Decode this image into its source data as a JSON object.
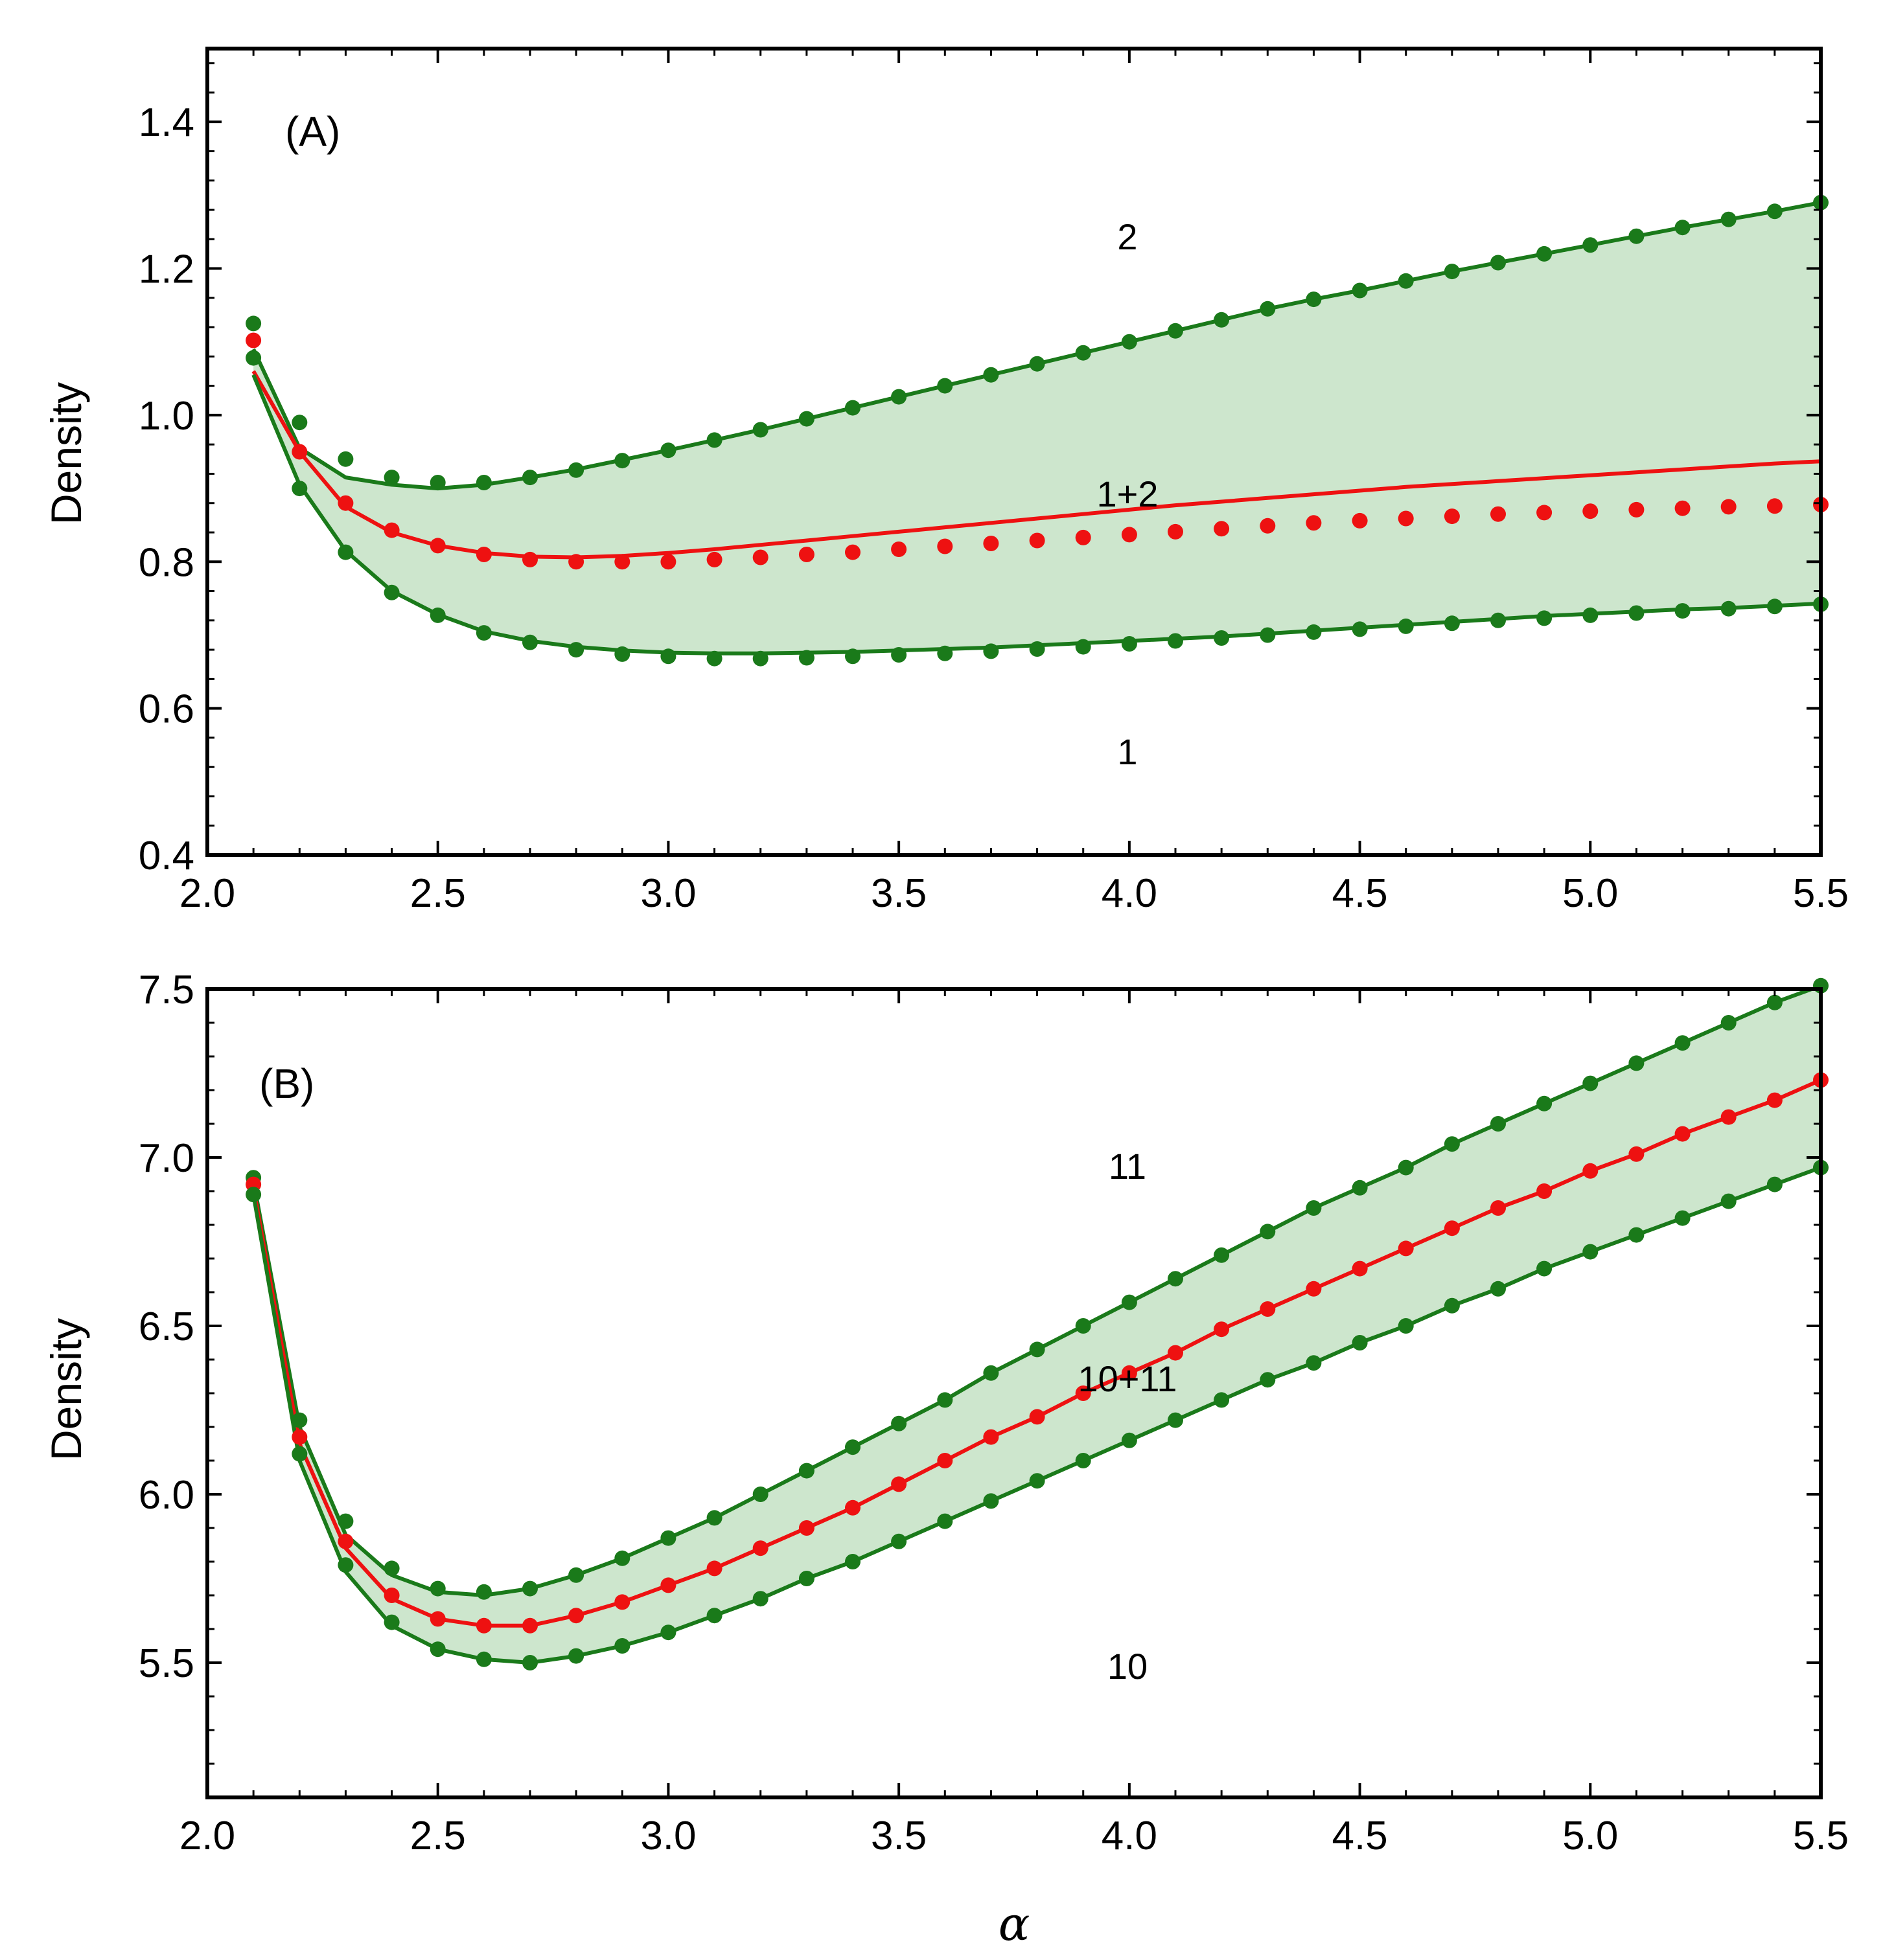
{
  "colors": {
    "green": "#1a7a1a",
    "red": "#ee1111",
    "fill": "#cde6cd",
    "frame": "#000000"
  },
  "xlabel": "α",
  "chart_data": [
    {
      "type": "line",
      "panel": "(A)",
      "ylabel": "Density",
      "xlim": [
        2.0,
        5.5
      ],
      "ylim": [
        0.4,
        1.5
      ],
      "xticks": [
        "2.0",
        "2.5",
        "3.0",
        "3.5",
        "4.0",
        "4.5",
        "5.0",
        "5.5"
      ],
      "yticks": [
        "0.4",
        "0.6",
        "0.8",
        "1.0",
        "1.2",
        "1.4"
      ],
      "region_labels": {
        "upper": "2",
        "middle": "1+2",
        "lower": "1"
      },
      "x": [
        2.1,
        2.2,
        2.3,
        2.4,
        2.5,
        2.6,
        2.7,
        2.8,
        2.9,
        3.0,
        3.1,
        3.2,
        3.3,
        3.4,
        3.5,
        3.6,
        3.7,
        3.8,
        3.9,
        4.0,
        4.1,
        4.2,
        4.3,
        4.4,
        4.5,
        4.6,
        4.7,
        4.8,
        4.9,
        5.0,
        5.1,
        5.2,
        5.3,
        5.4,
        5.5
      ],
      "series": [
        {
          "name": "upper",
          "color": "green",
          "line": [
            1.09,
            0.955,
            0.915,
            0.905,
            0.9,
            0.905,
            0.915,
            0.926,
            0.939,
            0.952,
            0.966,
            0.98,
            0.995,
            1.01,
            1.025,
            1.04,
            1.055,
            1.07,
            1.085,
            1.1,
            1.115,
            1.13,
            1.145,
            1.158,
            1.17,
            1.183,
            1.196,
            1.208,
            1.22,
            1.232,
            1.244,
            1.256,
            1.267,
            1.278,
            1.29
          ],
          "points": [
            1.125,
            0.99,
            0.94,
            0.915,
            0.908,
            0.908,
            0.915,
            0.925,
            0.938,
            0.952,
            0.966,
            0.98,
            0.995,
            1.01,
            1.025,
            1.04,
            1.055,
            1.07,
            1.085,
            1.1,
            1.115,
            1.13,
            1.145,
            1.158,
            1.17,
            1.183,
            1.196,
            1.208,
            1.22,
            1.232,
            1.244,
            1.256,
            1.267,
            1.278,
            1.29
          ]
        },
        {
          "name": "mixture",
          "color": "red",
          "line": [
            1.06,
            0.95,
            0.875,
            0.84,
            0.822,
            0.812,
            0.807,
            0.806,
            0.808,
            0.812,
            0.817,
            0.823,
            0.829,
            0.835,
            0.841,
            0.847,
            0.853,
            0.859,
            0.865,
            0.871,
            0.877,
            0.882,
            0.887,
            0.892,
            0.897,
            0.902,
            0.906,
            0.91,
            0.914,
            0.918,
            0.922,
            0.926,
            0.93,
            0.934,
            0.937
          ],
          "points": [
            1.102,
            0.95,
            0.88,
            0.843,
            0.822,
            0.81,
            0.803,
            0.8,
            0.8,
            0.8,
            0.803,
            0.806,
            0.81,
            0.813,
            0.817,
            0.821,
            0.825,
            0.829,
            0.833,
            0.837,
            0.841,
            0.845,
            0.849,
            0.853,
            0.856,
            0.859,
            0.862,
            0.865,
            0.867,
            0.869,
            0.871,
            0.873,
            0.875,
            0.876,
            0.878
          ]
        },
        {
          "name": "lower",
          "color": "green",
          "line": [
            1.055,
            0.905,
            0.815,
            0.76,
            0.728,
            0.705,
            0.692,
            0.684,
            0.679,
            0.676,
            0.675,
            0.675,
            0.676,
            0.677,
            0.679,
            0.681,
            0.683,
            0.686,
            0.689,
            0.692,
            0.695,
            0.698,
            0.702,
            0.706,
            0.71,
            0.714,
            0.718,
            0.722,
            0.726,
            0.729,
            0.732,
            0.735,
            0.737,
            0.74,
            0.743
          ],
          "points": [
            1.078,
            0.9,
            0.813,
            0.758,
            0.727,
            0.703,
            0.69,
            0.68,
            0.674,
            0.671,
            0.668,
            0.668,
            0.669,
            0.671,
            0.673,
            0.675,
            0.678,
            0.681,
            0.684,
            0.688,
            0.692,
            0.696,
            0.7,
            0.704,
            0.708,
            0.712,
            0.716,
            0.72,
            0.723,
            0.727,
            0.73,
            0.733,
            0.736,
            0.739,
            0.742
          ]
        }
      ]
    },
    {
      "type": "line",
      "panel": "(B)",
      "ylabel": "Density",
      "xlim": [
        2.0,
        5.5
      ],
      "ylim": [
        5.1,
        7.5
      ],
      "xticks": [
        "2.0",
        "2.5",
        "3.0",
        "3.5",
        "4.0",
        "4.5",
        "5.0",
        "5.5"
      ],
      "yticks": [
        "5.5",
        "6.0",
        "6.5",
        "7.0",
        "7.5"
      ],
      "region_labels": {
        "upper": "11",
        "middle": "10+11",
        "lower": "10"
      },
      "x": [
        2.1,
        2.2,
        2.3,
        2.4,
        2.5,
        2.6,
        2.7,
        2.8,
        2.9,
        3.0,
        3.1,
        3.2,
        3.3,
        3.4,
        3.5,
        3.6,
        3.7,
        3.8,
        3.9,
        4.0,
        4.1,
        4.2,
        4.3,
        4.4,
        4.5,
        4.6,
        4.7,
        4.8,
        4.9,
        5.0,
        5.1,
        5.2,
        5.3,
        5.4,
        5.5
      ],
      "series": [
        {
          "name": "upper",
          "color": "green",
          "line": [
            6.93,
            6.2,
            5.88,
            5.76,
            5.71,
            5.7,
            5.72,
            5.76,
            5.81,
            5.87,
            5.93,
            6.0,
            6.07,
            6.14,
            6.21,
            6.28,
            6.36,
            6.43,
            6.5,
            6.57,
            6.64,
            6.71,
            6.78,
            6.85,
            6.91,
            6.97,
            7.04,
            7.1,
            7.16,
            7.22,
            7.28,
            7.34,
            7.4,
            7.46,
            7.51
          ],
          "points": [
            6.94,
            6.22,
            5.92,
            5.78,
            5.72,
            5.71,
            5.72,
            5.76,
            5.81,
            5.87,
            5.93,
            6.0,
            6.07,
            6.14,
            6.21,
            6.28,
            6.36,
            6.43,
            6.5,
            6.57,
            6.64,
            6.71,
            6.78,
            6.85,
            6.91,
            6.97,
            7.04,
            7.1,
            7.16,
            7.22,
            7.28,
            7.34,
            7.4,
            7.46,
            7.51
          ]
        },
        {
          "name": "mixture",
          "color": "red",
          "line": [
            6.91,
            6.15,
            5.84,
            5.69,
            5.63,
            5.61,
            5.61,
            5.64,
            5.68,
            5.73,
            5.78,
            5.84,
            5.9,
            5.96,
            6.03,
            6.1,
            6.17,
            6.23,
            6.3,
            6.36,
            6.42,
            6.49,
            6.55,
            6.61,
            6.67,
            6.73,
            6.79,
            6.85,
            6.9,
            6.96,
            7.01,
            7.07,
            7.12,
            7.17,
            7.23
          ],
          "points": [
            6.92,
            6.17,
            5.86,
            5.7,
            5.63,
            5.61,
            5.61,
            5.64,
            5.68,
            5.73,
            5.78,
            5.84,
            5.9,
            5.96,
            6.03,
            6.1,
            6.17,
            6.23,
            6.3,
            6.36,
            6.42,
            6.49,
            6.55,
            6.61,
            6.67,
            6.73,
            6.79,
            6.85,
            6.9,
            6.96,
            7.01,
            7.07,
            7.12,
            7.17,
            7.23
          ]
        },
        {
          "name": "lower",
          "color": "green",
          "line": [
            6.89,
            6.1,
            5.77,
            5.61,
            5.54,
            5.51,
            5.5,
            5.52,
            5.55,
            5.59,
            5.64,
            5.69,
            5.75,
            5.8,
            5.86,
            5.92,
            5.98,
            6.04,
            6.1,
            6.16,
            6.22,
            6.28,
            6.34,
            6.39,
            6.45,
            6.5,
            6.56,
            6.61,
            6.67,
            6.72,
            6.77,
            6.82,
            6.87,
            6.92,
            6.97
          ],
          "points": [
            6.89,
            6.12,
            5.79,
            5.62,
            5.54,
            5.51,
            5.5,
            5.52,
            5.55,
            5.59,
            5.64,
            5.69,
            5.75,
            5.8,
            5.86,
            5.92,
            5.98,
            6.04,
            6.1,
            6.16,
            6.22,
            6.28,
            6.34,
            6.39,
            6.45,
            6.5,
            6.56,
            6.61,
            6.67,
            6.72,
            6.77,
            6.82,
            6.87,
            6.92,
            6.97
          ]
        }
      ]
    }
  ]
}
